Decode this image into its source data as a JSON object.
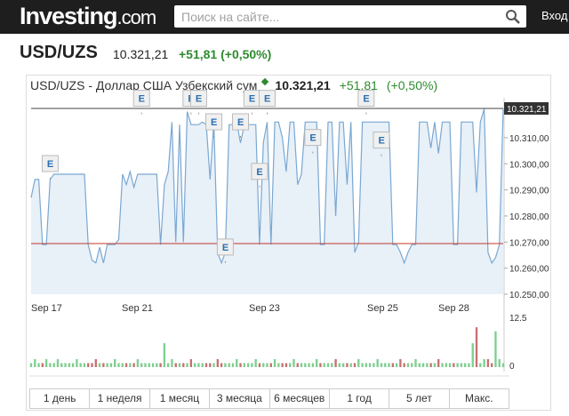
{
  "header": {
    "logo_main": "Investing",
    "logo_dot": ".com",
    "search_placeholder": "Поиск на сайте...",
    "login_label": "Вход"
  },
  "instrument": {
    "symbol": "USD/UZS",
    "price": "10.321,21",
    "change": "+51,81 (+0,50%)"
  },
  "chart_header": {
    "name": "USD/UZS - Доллар США Узбекский сум",
    "price": "10.321,21",
    "change": "+51,81",
    "change_pct": "(+0,50%)"
  },
  "watermark": {
    "main": "investing",
    "dot": ".com"
  },
  "colors": {
    "line": "#7aa8d2",
    "fill": "#e8f0f8",
    "up": "#2e8b2e",
    "down": "#c0392b",
    "vol_up": "#7dcf8f",
    "vol_down": "#c87070"
  },
  "chart_data": {
    "type": "area",
    "y_ticks": [
      "10.310,00",
      "10.300,00",
      "10.290,00",
      "10.280,00",
      "10.270,00",
      "10.260,00",
      "10.250,00"
    ],
    "y_tick_values": [
      10310,
      10300,
      10290,
      10280,
      10270,
      10260,
      10250
    ],
    "ylim": [
      10250,
      10321.21
    ],
    "last_price_label": "10.321,21",
    "last_price": 10321.21,
    "reference_price": 10269.4,
    "x_tick_labels": [
      "Sep 17",
      "Sep 21",
      "Sep 23",
      "Sep 25",
      "Sep 28"
    ],
    "values": [
      10287,
      10294,
      10294,
      10269,
      10269,
      10294,
      10296,
      10296,
      10296,
      10296,
      10296,
      10296,
      10296,
      10296,
      10296,
      10269,
      10263,
      10262,
      10268,
      10262,
      10269,
      10269,
      10269,
      10271,
      10296,
      10292,
      10297,
      10291,
      10296,
      10296,
      10296,
      10296,
      10296,
      10296,
      10269,
      10292,
      10297,
      10316,
      10270,
      10315,
      10270,
      10320,
      10315,
      10315,
      10315,
      10316,
      10315,
      10294,
      10316,
      10266,
      10262,
      10266,
      10315,
      10315,
      10316,
      10308,
      10315,
      10315,
      10315,
      10315,
      10269,
      10308,
      10316,
      10269,
      10316,
      10316,
      10310,
      10297,
      10316,
      10316,
      10292,
      10296,
      10316,
      10316,
      10316,
      10316,
      10269,
      10269,
      10316,
      10316,
      10280,
      10316,
      10316,
      10292,
      10316,
      10266,
      10270,
      10316,
      10316,
      10316,
      10316,
      10316,
      10316,
      10316,
      10316,
      10269,
      10269,
      10266,
      10262,
      10266,
      10269,
      10269,
      10316,
      10316,
      10316,
      10306,
      10316,
      10304,
      10316,
      10316,
      10316,
      10269,
      10269,
      10316,
      10316,
      10316,
      10316,
      10289,
      10316,
      10321,
      10266,
      10262,
      10264,
      10269,
      10321
    ],
    "volume_ticks": [
      "12.5",
      "0"
    ],
    "volume_max": 12.5,
    "volume": [
      1,
      2,
      1,
      1,
      2,
      1,
      1,
      2,
      1,
      1,
      1,
      1,
      2,
      1,
      1,
      1,
      1,
      2,
      1,
      1,
      1,
      1,
      2,
      1,
      1,
      1,
      1,
      1,
      2,
      1,
      1,
      1,
      1,
      1,
      1,
      6,
      1,
      2,
      1,
      1,
      1,
      1,
      2,
      1,
      1,
      1,
      1,
      1,
      1,
      2,
      1,
      1,
      1,
      1,
      2,
      1,
      1,
      1,
      1,
      2,
      1,
      1,
      1,
      1,
      2,
      1,
      1,
      1,
      1,
      2,
      1,
      1,
      1,
      1,
      1,
      2,
      1,
      1,
      1,
      1,
      2,
      1,
      1,
      1,
      1,
      1,
      2,
      1,
      1,
      1,
      1,
      2,
      1,
      1,
      1,
      1,
      1,
      2,
      1,
      1,
      1,
      2,
      1,
      1,
      1,
      1,
      1,
      2,
      1,
      1,
      1,
      1,
      1,
      1,
      1,
      1,
      6,
      10,
      1,
      2,
      2,
      1,
      9,
      2,
      1
    ],
    "events": [
      {
        "label": "E",
        "index": 5,
        "value": 10296
      },
      {
        "label": "E",
        "index": 29,
        "value": 10321
      },
      {
        "label": "E",
        "index": 42,
        "value": 10321
      },
      {
        "label": "E",
        "index": 44,
        "value": 10321
      },
      {
        "label": "E",
        "index": 48,
        "value": 10312
      },
      {
        "label": "E",
        "index": 51,
        "value": 10264
      },
      {
        "label": "E",
        "index": 55,
        "value": 10312
      },
      {
        "label": "E",
        "index": 58,
        "value": 10321
      },
      {
        "label": "E",
        "index": 60,
        "value": 10293
      },
      {
        "label": "E",
        "index": 62,
        "value": 10321
      },
      {
        "label": "E",
        "index": 74,
        "value": 10306
      },
      {
        "label": "E",
        "index": 88,
        "value": 10321
      },
      {
        "label": "E",
        "index": 92,
        "value": 10305
      }
    ]
  },
  "ranges": [
    "1 день",
    "1 неделя",
    "1 месяц",
    "3 месяца",
    "6 месяцев",
    "1 год",
    "5 лет",
    "Макс."
  ]
}
